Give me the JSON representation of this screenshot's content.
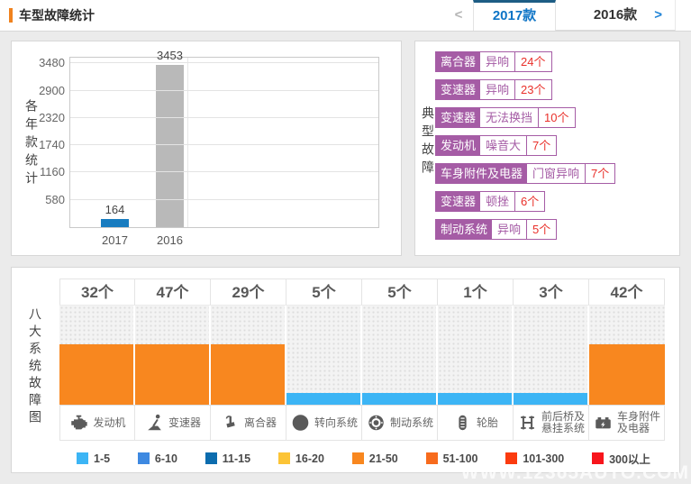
{
  "header": {
    "title": "车型故障统计",
    "prev_arrow": "<",
    "next_arrow": ">",
    "tabs": [
      {
        "label": "2017款",
        "active": true
      },
      {
        "label": "2016款",
        "active": false
      }
    ],
    "marker_color": "#f0821e",
    "active_tab_color": "#0d74c6"
  },
  "typical": {
    "side_label": "典型故障",
    "accent_purple": "#a55ca5",
    "count_red": "#e9302a",
    "items": [
      {
        "part": "离合器",
        "issue": "异响",
        "count": "24个"
      },
      {
        "part": "变速器",
        "issue": "异响",
        "count": "23个"
      },
      {
        "part": "变速器",
        "issue": "无法换挡",
        "count": "10个"
      },
      {
        "part": "发动机",
        "issue": "噪音大",
        "count": "7个"
      },
      {
        "part": "车身附件及电器",
        "issue": "门窗异响",
        "count": "7个"
      },
      {
        "part": "变速器",
        "issue": "顿挫",
        "count": "6个"
      },
      {
        "part": "制动系统",
        "issue": "异响",
        "count": "5个"
      }
    ]
  },
  "systems": {
    "side_label": "八大系统故障图",
    "columns": [
      {
        "name": "发动机",
        "icon": "engine-icon"
      },
      {
        "name": "变速器",
        "icon": "gearbox-icon"
      },
      {
        "name": "离合器",
        "icon": "clutch-icon"
      },
      {
        "name": "转向系统",
        "icon": "steering-icon"
      },
      {
        "name": "制动系统",
        "icon": "brake-icon"
      },
      {
        "name": "轮胎",
        "icon": "tire-icon"
      },
      {
        "name": "前后桥及\n悬挂系统",
        "icon": "axle-suspension-icon"
      },
      {
        "name": "车身附件\n及电器",
        "icon": "body-electric-icon"
      }
    ]
  },
  "watermark": "WWW.12365AUTO.COM",
  "chart_data": [
    {
      "type": "bar",
      "title": "各年款统计",
      "categories": [
        "2017",
        "2016"
      ],
      "values": [
        164,
        3453
      ],
      "bar_colors": [
        "#187cc0",
        "#b9b9b9"
      ],
      "yticks": [
        580,
        1160,
        1740,
        2320,
        2900,
        3480
      ],
      "ylim": [
        0,
        3600
      ],
      "grid": true,
      "value_labels": true
    },
    {
      "type": "bar",
      "subtype": "bucket-level",
      "title": "八大系统故障图",
      "categories": [
        "发动机",
        "变速器",
        "离合器",
        "转向系统",
        "制动系统",
        "轮胎",
        "前后桥及悬挂系统",
        "车身附件及电器"
      ],
      "values": [
        32,
        47,
        29,
        5,
        5,
        1,
        3,
        42
      ],
      "value_labels": [
        "32个",
        "47个",
        "29个",
        "5个",
        "5个",
        "1个",
        "3个",
        "42个"
      ],
      "legend_position": "bottom",
      "legend": [
        {
          "label": "1-5",
          "max": 5,
          "color": "#3cb5f5"
        },
        {
          "label": "6-10",
          "max": 10,
          "color": "#3e89e1"
        },
        {
          "label": "11-15",
          "max": 15,
          "color": "#0c6cae"
        },
        {
          "label": "16-20",
          "max": 20,
          "color": "#fcc436"
        },
        {
          "label": "21-50",
          "max": 50,
          "color": "#f8871f"
        },
        {
          "label": "51-100",
          "max": 100,
          "color": "#f76b1d"
        },
        {
          "label": "101-300",
          "max": 300,
          "color": "#fb3b0f"
        },
        {
          "label": "300以上",
          "max": null,
          "color": "#f7151c"
        }
      ]
    }
  ]
}
